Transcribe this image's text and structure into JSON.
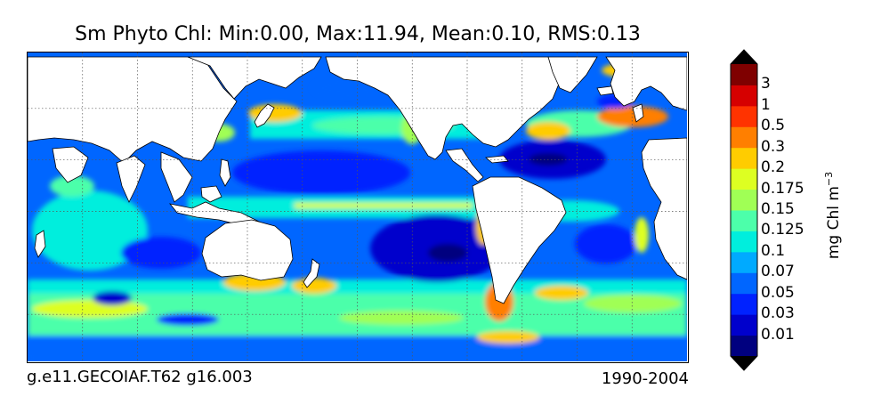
{
  "title": "Sm Phyto Chl: Min:0.00, Max:11.94, Mean:0.10, RMS:0.13",
  "footer_left": "g.e11.GECOIAF.T62 g16.003",
  "footer_right": "1990-2004",
  "colorbar": {
    "unit_main": "mg Chl m",
    "unit_exp": "−3",
    "extend": "both",
    "levels": [
      "0.01",
      "0.03",
      "0.05",
      "0.07",
      "0.1",
      "0.125",
      "0.15",
      "0.175",
      "0.2",
      "0.3",
      "0.5",
      "1",
      "3"
    ],
    "colors": [
      "#00007f",
      "#0000cc",
      "#0022ff",
      "#0066ff",
      "#00aaff",
      "#00eedd",
      "#4cffaa",
      "#a0ff55",
      "#ddff22",
      "#ffcc00",
      "#ff7f00",
      "#ff3300",
      "#d60000",
      "#7f0000"
    ]
  },
  "map": {
    "ocean_base": "#0066ff",
    "land_color": "#ffffff",
    "grid": "dotted"
  }
}
